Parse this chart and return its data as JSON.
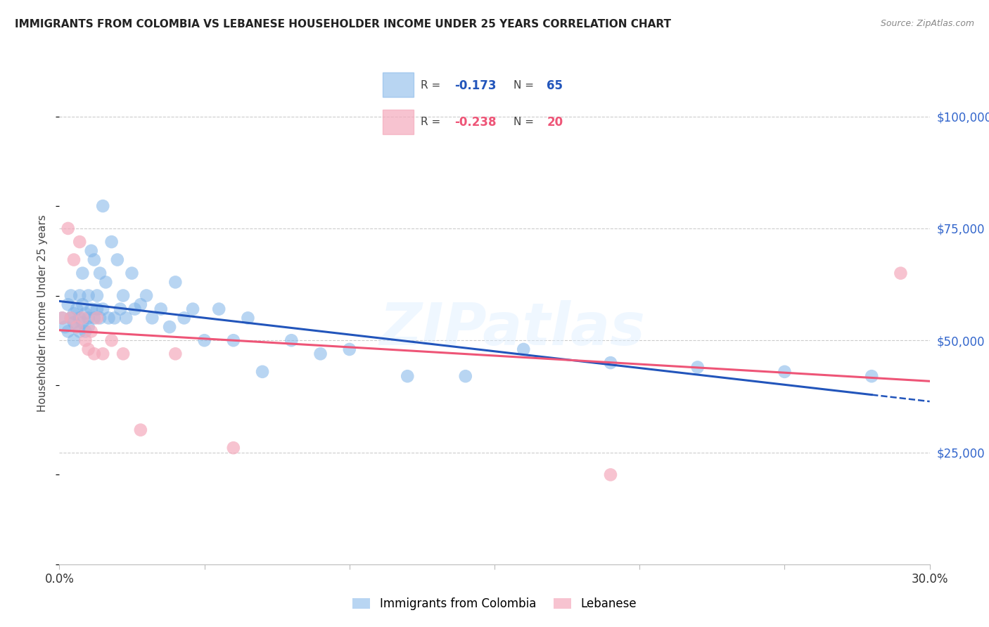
{
  "title": "IMMIGRANTS FROM COLOMBIA VS LEBANESE HOUSEHOLDER INCOME UNDER 25 YEARS CORRELATION CHART",
  "source": "Source: ZipAtlas.com",
  "ylabel": "Householder Income Under 25 years",
  "ytick_values": [
    25000,
    50000,
    75000,
    100000
  ],
  "ymin": 0,
  "ymax": 112000,
  "xmin": 0.0,
  "xmax": 0.3,
  "colombia_R": -0.173,
  "colombia_N": 65,
  "lebanese_R": -0.238,
  "lebanese_N": 20,
  "colombia_color": "#7EB3E8",
  "lebanese_color": "#F4AABC",
  "trend_colombia_color": "#2255BB",
  "trend_lebanese_color": "#EE5577",
  "background_color": "#FFFFFF",
  "grid_color": "#CCCCCC",
  "colombia_x": [
    0.001,
    0.002,
    0.003,
    0.003,
    0.004,
    0.004,
    0.005,
    0.005,
    0.005,
    0.006,
    0.006,
    0.007,
    0.007,
    0.007,
    0.008,
    0.008,
    0.008,
    0.009,
    0.009,
    0.01,
    0.01,
    0.01,
    0.011,
    0.011,
    0.012,
    0.012,
    0.013,
    0.013,
    0.014,
    0.014,
    0.015,
    0.015,
    0.016,
    0.017,
    0.018,
    0.019,
    0.02,
    0.021,
    0.022,
    0.023,
    0.025,
    0.026,
    0.028,
    0.03,
    0.032,
    0.035,
    0.038,
    0.04,
    0.043,
    0.046,
    0.05,
    0.055,
    0.06,
    0.065,
    0.07,
    0.08,
    0.09,
    0.1,
    0.12,
    0.14,
    0.16,
    0.19,
    0.22,
    0.25,
    0.28
  ],
  "colombia_y": [
    55000,
    53000,
    58000,
    52000,
    60000,
    55000,
    56000,
    54000,
    50000,
    57000,
    53000,
    60000,
    55000,
    52000,
    65000,
    58000,
    54000,
    56000,
    52000,
    60000,
    55000,
    53000,
    70000,
    57000,
    68000,
    55000,
    60000,
    57000,
    65000,
    55000,
    80000,
    57000,
    63000,
    55000,
    72000,
    55000,
    68000,
    57000,
    60000,
    55000,
    65000,
    57000,
    58000,
    60000,
    55000,
    57000,
    53000,
    63000,
    55000,
    57000,
    50000,
    57000,
    50000,
    55000,
    43000,
    50000,
    47000,
    48000,
    42000,
    42000,
    48000,
    45000,
    44000,
    43000,
    42000
  ],
  "lebanese_x": [
    0.001,
    0.003,
    0.004,
    0.005,
    0.006,
    0.007,
    0.008,
    0.009,
    0.01,
    0.011,
    0.012,
    0.013,
    0.015,
    0.018,
    0.022,
    0.028,
    0.04,
    0.06,
    0.19,
    0.29
  ],
  "lebanese_y": [
    55000,
    75000,
    55000,
    68000,
    53000,
    72000,
    55000,
    50000,
    48000,
    52000,
    47000,
    55000,
    47000,
    50000,
    47000,
    30000,
    47000,
    26000,
    20000,
    65000
  ],
  "legend_colombia_label": "Immigrants from Colombia",
  "legend_lebanese_label": "Lebanese",
  "watermark": "ZIPatlas"
}
